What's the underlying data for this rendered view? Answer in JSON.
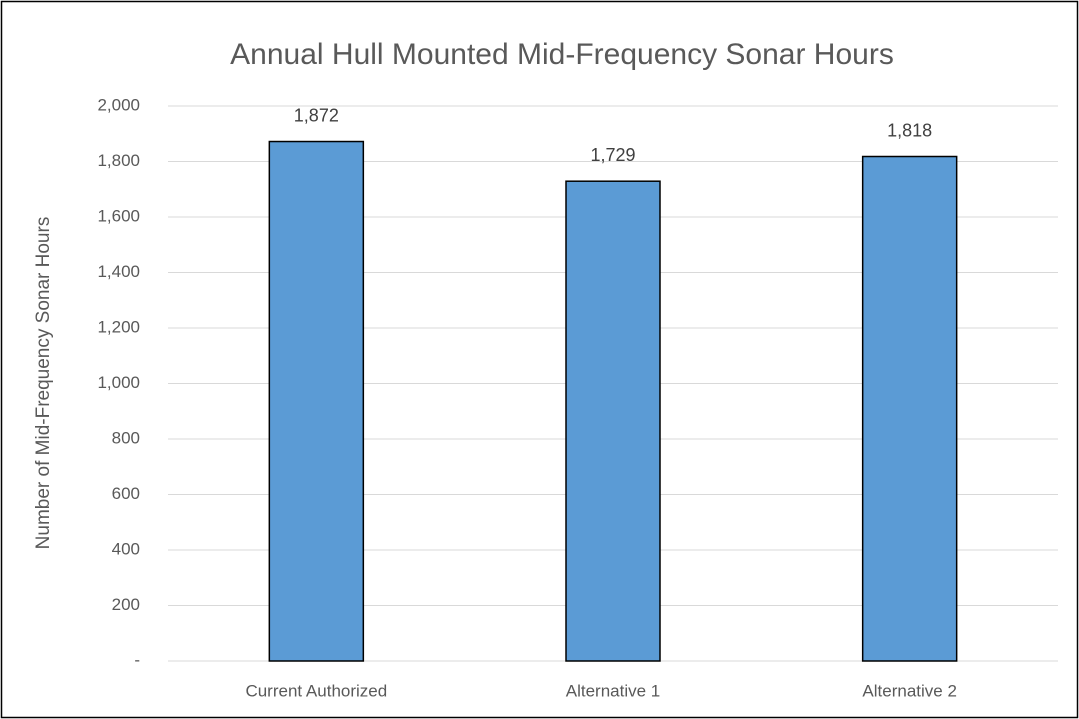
{
  "chart_data": {
    "type": "bar",
    "title": "Annual Hull Mounted Mid-Frequency Sonar Hours",
    "ylabel": "Number of Mid-Frequency Sonar Hours",
    "categories": [
      "Current Authorized",
      "Alternative 1",
      "Alternative 2"
    ],
    "values": [
      1872,
      1729,
      1818
    ],
    "value_labels": [
      "1,872",
      "1,729",
      "1,818"
    ],
    "color": "#5b9bd5",
    "ylim": [
      0,
      2000
    ],
    "yticks": [
      {
        "value": 0,
        "label": "-"
      },
      200,
      400,
      600,
      800,
      {
        "value": 1000,
        "label": "1,000"
      },
      {
        "value": 1200,
        "label": "1,200"
      },
      {
        "value": 1400,
        "label": "1,400"
      },
      {
        "value": 1600,
        "label": "1,600"
      },
      {
        "value": 1800,
        "label": "1,800"
      },
      {
        "value": 2000,
        "label": "2,000"
      }
    ],
    "grid": true
  }
}
